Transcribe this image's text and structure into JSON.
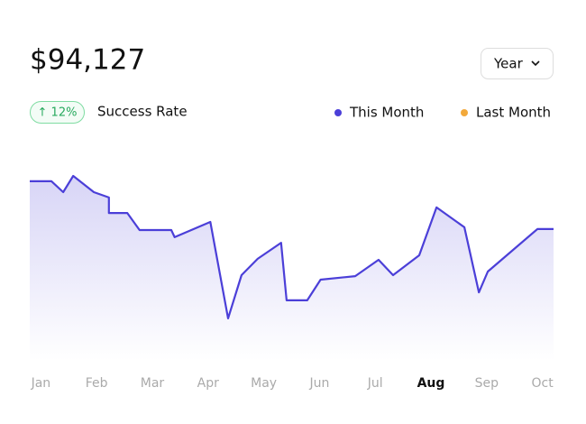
{
  "header": {
    "amount": "$94,127",
    "badge": "↑ 12%",
    "badge_caption": "Success Rate",
    "dropdown": "Year"
  },
  "chart_data": {
    "type": "area",
    "x": [
      -0.2,
      0.19,
      0.4,
      0.58,
      0.95,
      1.22,
      1.22,
      1.55,
      1.77,
      2.34,
      2.4,
      3.04,
      3.36,
      3.6,
      3.89,
      4.31,
      4.41,
      4.78,
      5.02,
      5.64,
      6.06,
      6.32,
      6.79,
      7.1,
      7.6,
      7.86,
      8.02,
      8.91,
      9.2
    ],
    "series": [
      {
        "name": "This Month",
        "color": "#4b3fd8",
        "values": [
          90.5,
          90.5,
          85,
          93.2,
          85,
          82.3,
          74.5,
          74.5,
          65.9,
          65.9,
          62.3,
          70,
          21.4,
          43.2,
          51.4,
          59.5,
          30.5,
          30.5,
          40.9,
          42.7,
          50.9,
          43.2,
          53.2,
          77.3,
          67.3,
          34.5,
          45,
          66.4,
          66.4
        ]
      },
      {
        "name": "Last Month",
        "color": "#f2a93b",
        "values": [
          null,
          null,
          null,
          null,
          null,
          null,
          null,
          null,
          null,
          null,
          null,
          null,
          null,
          null,
          null,
          null,
          null,
          null,
          null,
          null,
          null,
          null,
          null,
          null,
          null,
          null,
          null,
          null,
          null
        ]
      }
    ],
    "xlim": [
      -0.2,
      9.2
    ],
    "ylim": [
      0,
      100
    ],
    "xticks": [
      {
        "value": 0,
        "label": "Jan"
      },
      {
        "value": 1,
        "label": "Feb"
      },
      {
        "value": 2,
        "label": "Mar"
      },
      {
        "value": 3,
        "label": "Apr"
      },
      {
        "value": 4,
        "label": "May"
      },
      {
        "value": 5,
        "label": "Jun"
      },
      {
        "value": 6,
        "label": "Jul"
      },
      {
        "value": 7,
        "label": "Aug"
      },
      {
        "value": 8,
        "label": "Sep"
      },
      {
        "value": 9,
        "label": "Oct"
      }
    ],
    "active_xtick": 7
  }
}
